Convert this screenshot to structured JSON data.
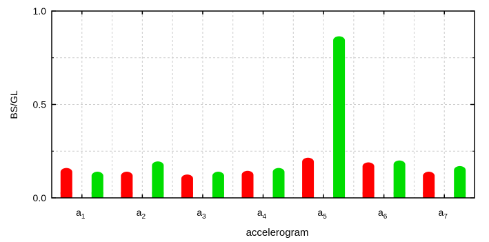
{
  "chart_data": {
    "type": "bar",
    "categories": [
      {
        "base": "a",
        "sub": "1"
      },
      {
        "base": "a",
        "sub": "2"
      },
      {
        "base": "a",
        "sub": "3"
      },
      {
        "base": "a",
        "sub": "4"
      },
      {
        "base": "a",
        "sub": "5"
      },
      {
        "base": "a",
        "sub": "6"
      },
      {
        "base": "a",
        "sub": "7"
      }
    ],
    "series": [
      {
        "color": "#ff0000",
        "values": [
          0.16,
          0.14,
          0.125,
          0.145,
          0.215,
          0.19,
          0.14
        ]
      },
      {
        "color": "#00dd00",
        "values": [
          0.14,
          0.195,
          0.14,
          0.16,
          0.865,
          0.2,
          0.17
        ]
      }
    ],
    "xlabel": "accelerogram",
    "ylabel": "BS/GL",
    "ylim": [
      0,
      1.0
    ],
    "yticks": [
      {
        "value": 0,
        "label": "0.0"
      },
      {
        "value": 0.5,
        "label": "0.5"
      },
      {
        "value": 1.0,
        "label": "1.0"
      }
    ],
    "minor_yticks": [
      0.25,
      0.75
    ],
    "grid": true
  }
}
